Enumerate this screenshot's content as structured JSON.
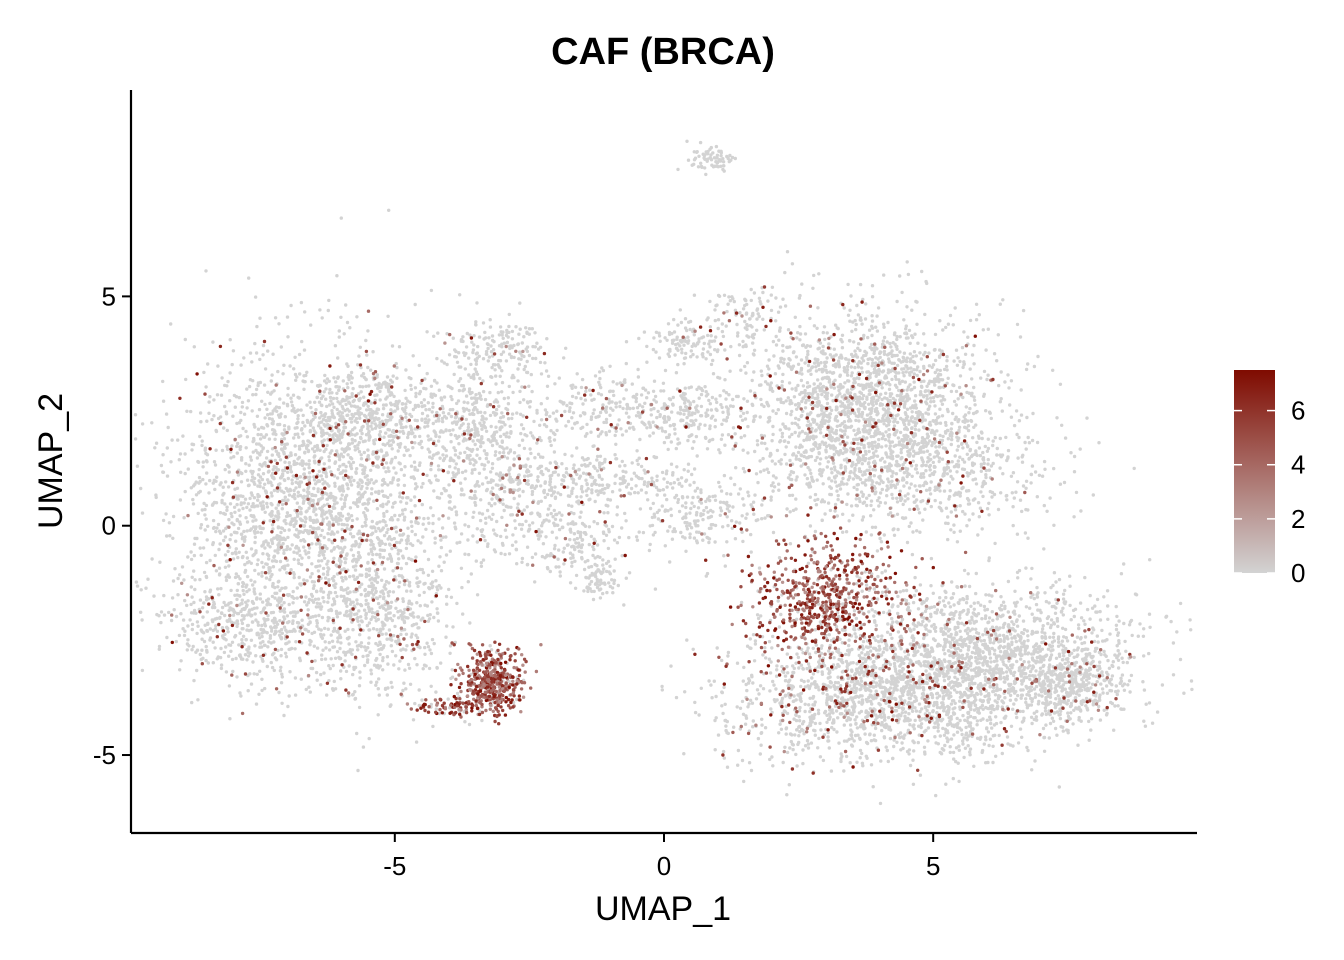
{
  "chart_data": {
    "type": "scatter",
    "title": "CAF (BRCA)",
    "xlabel": "UMAP_1",
    "ylabel": "UMAP_2",
    "xlim": [
      -9.9,
      9.9
    ],
    "ylim": [
      -6.7,
      9.5
    ],
    "x_ticks": [
      -5,
      0,
      5
    ],
    "x_tick_labels": [
      "-5",
      "0",
      "5"
    ],
    "y_ticks": [
      -5,
      0,
      5
    ],
    "y_tick_labels": [
      "-5",
      "0",
      "5"
    ],
    "grid": false,
    "legend": {
      "type": "colorbar",
      "placement": "right",
      "range": [
        0,
        7.5
      ],
      "ticks": [
        0,
        2,
        4,
        6
      ],
      "tick_labels": [
        "0",
        "2",
        "4",
        "6"
      ],
      "low_color": "#d3d3d3",
      "high_color": "#7f0b00"
    },
    "point_color_background": "#d3d3d3",
    "point_color_high": "#7f0b00",
    "clusters": [
      {
        "cx": -6.6,
        "cy": 0.6,
        "sx": 1.25,
        "sy": 1.6,
        "n": 2200,
        "expr": 0.05
      },
      {
        "cx": -7.5,
        "cy": -2.2,
        "sx": 0.9,
        "sy": 0.6,
        "n": 500,
        "expr": 0.05
      },
      {
        "cx": -5.4,
        "cy": 2.4,
        "sx": 0.7,
        "sy": 0.6,
        "n": 400,
        "expr": 0.05
      },
      {
        "cx": -5.2,
        "cy": -1.8,
        "sx": 0.7,
        "sy": 1.0,
        "n": 500,
        "expr": 0.05
      },
      {
        "cx": -3.4,
        "cy": 2.2,
        "sx": 0.6,
        "sy": 0.7,
        "n": 400,
        "expr": 0.05
      },
      {
        "cx": -3.1,
        "cy": 3.9,
        "sx": 0.5,
        "sy": 0.3,
        "n": 150,
        "expr": 0.02
      },
      {
        "cx": -2.8,
        "cy": 0.6,
        "sx": 0.7,
        "sy": 0.7,
        "n": 300,
        "expr": 0.05
      },
      {
        "cx": -1.6,
        "cy": -0.4,
        "sx": 0.5,
        "sy": 0.4,
        "n": 150,
        "expr": 0.05
      },
      {
        "cx": -1.2,
        "cy": -1.2,
        "sx": 0.2,
        "sy": 0.2,
        "n": 60,
        "expr": 0.02
      },
      {
        "cx": -1.0,
        "cy": 2.6,
        "sx": 0.7,
        "sy": 0.5,
        "n": 250,
        "expr": 0.05
      },
      {
        "cx": -1.1,
        "cy": 1.0,
        "sx": 0.8,
        "sy": 0.25,
        "n": 200,
        "expr": 0.05
      },
      {
        "cx": 0.4,
        "cy": 4.0,
        "sx": 0.4,
        "sy": 0.25,
        "n": 100,
        "expr": 0.05
      },
      {
        "cx": 0.5,
        "cy": 2.4,
        "sx": 0.5,
        "sy": 0.3,
        "n": 150,
        "expr": 0.05
      },
      {
        "cx": 0.6,
        "cy": 0.2,
        "sx": 0.6,
        "sy": 0.5,
        "n": 200,
        "expr": 0.05
      },
      {
        "cx": 0.9,
        "cy": 8.0,
        "sx": 0.22,
        "sy": 0.12,
        "n": 70,
        "expr": 0.0
      },
      {
        "cx": 1.5,
        "cy": 4.6,
        "sx": 0.4,
        "sy": 0.3,
        "n": 80,
        "expr": 0.05
      },
      {
        "cx": 3.7,
        "cy": 2.7,
        "sx": 1.2,
        "sy": 1.0,
        "n": 1800,
        "expr": 0.05
      },
      {
        "cx": 4.5,
        "cy": 1.2,
        "sx": 1.3,
        "sy": 0.7,
        "n": 700,
        "expr": 0.05
      },
      {
        "cx": 5.9,
        "cy": -2.8,
        "sx": 1.4,
        "sy": 0.8,
        "n": 1600,
        "expr": 0.05
      },
      {
        "cx": 4.0,
        "cy": -3.8,
        "sx": 1.4,
        "sy": 0.7,
        "n": 1400,
        "expr": 0.1
      },
      {
        "cx": 7.5,
        "cy": -3.5,
        "sx": 0.5,
        "sy": 0.4,
        "n": 400,
        "expr": 0.05
      },
      {
        "cx": 3.0,
        "cy": -1.6,
        "sx": 0.75,
        "sy": 0.7,
        "n": 650,
        "expr": 0.85
      },
      {
        "cx": -3.2,
        "cy": -3.4,
        "sx": 0.28,
        "sy": 0.35,
        "n": 420,
        "expr": 0.9
      },
      {
        "cx": -3.9,
        "cy": -3.95,
        "sx": 0.45,
        "sy": 0.1,
        "n": 90,
        "expr": 0.7
      }
    ]
  }
}
